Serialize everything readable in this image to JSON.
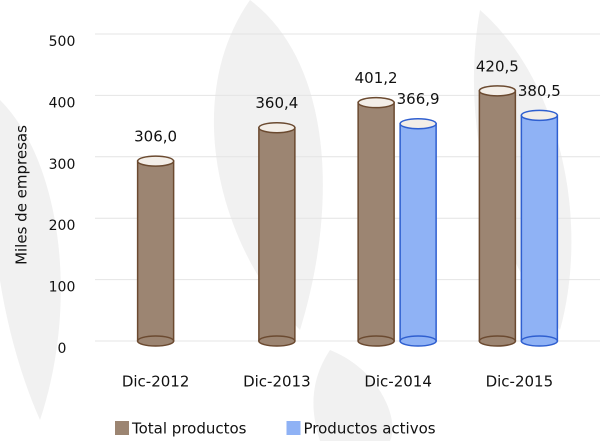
{
  "chart_data": {
    "type": "bar",
    "categories": [
      "Dic-2012",
      "Dic-2013",
      "Dic-2014",
      "Dic-2015"
    ],
    "series": [
      {
        "name": "Total productos",
        "color": "#9c8572",
        "values": [
          306.0,
          360.4,
          401.2,
          420.5
        ],
        "value_labels": [
          "306,0",
          "360,4",
          "401,2",
          "420,5"
        ]
      },
      {
        "name": "Productos activos",
        "color": "#8fb2f5",
        "values": [
          null,
          null,
          366.9,
          380.5
        ],
        "value_labels": [
          null,
          null,
          "366,9",
          "380,5"
        ]
      }
    ],
    "y_label": "Miles de empresas",
    "ylim": [
      0,
      500
    ],
    "yticks": [
      0,
      100,
      200,
      300,
      400,
      500
    ],
    "grid": true,
    "legend": "bottom"
  }
}
